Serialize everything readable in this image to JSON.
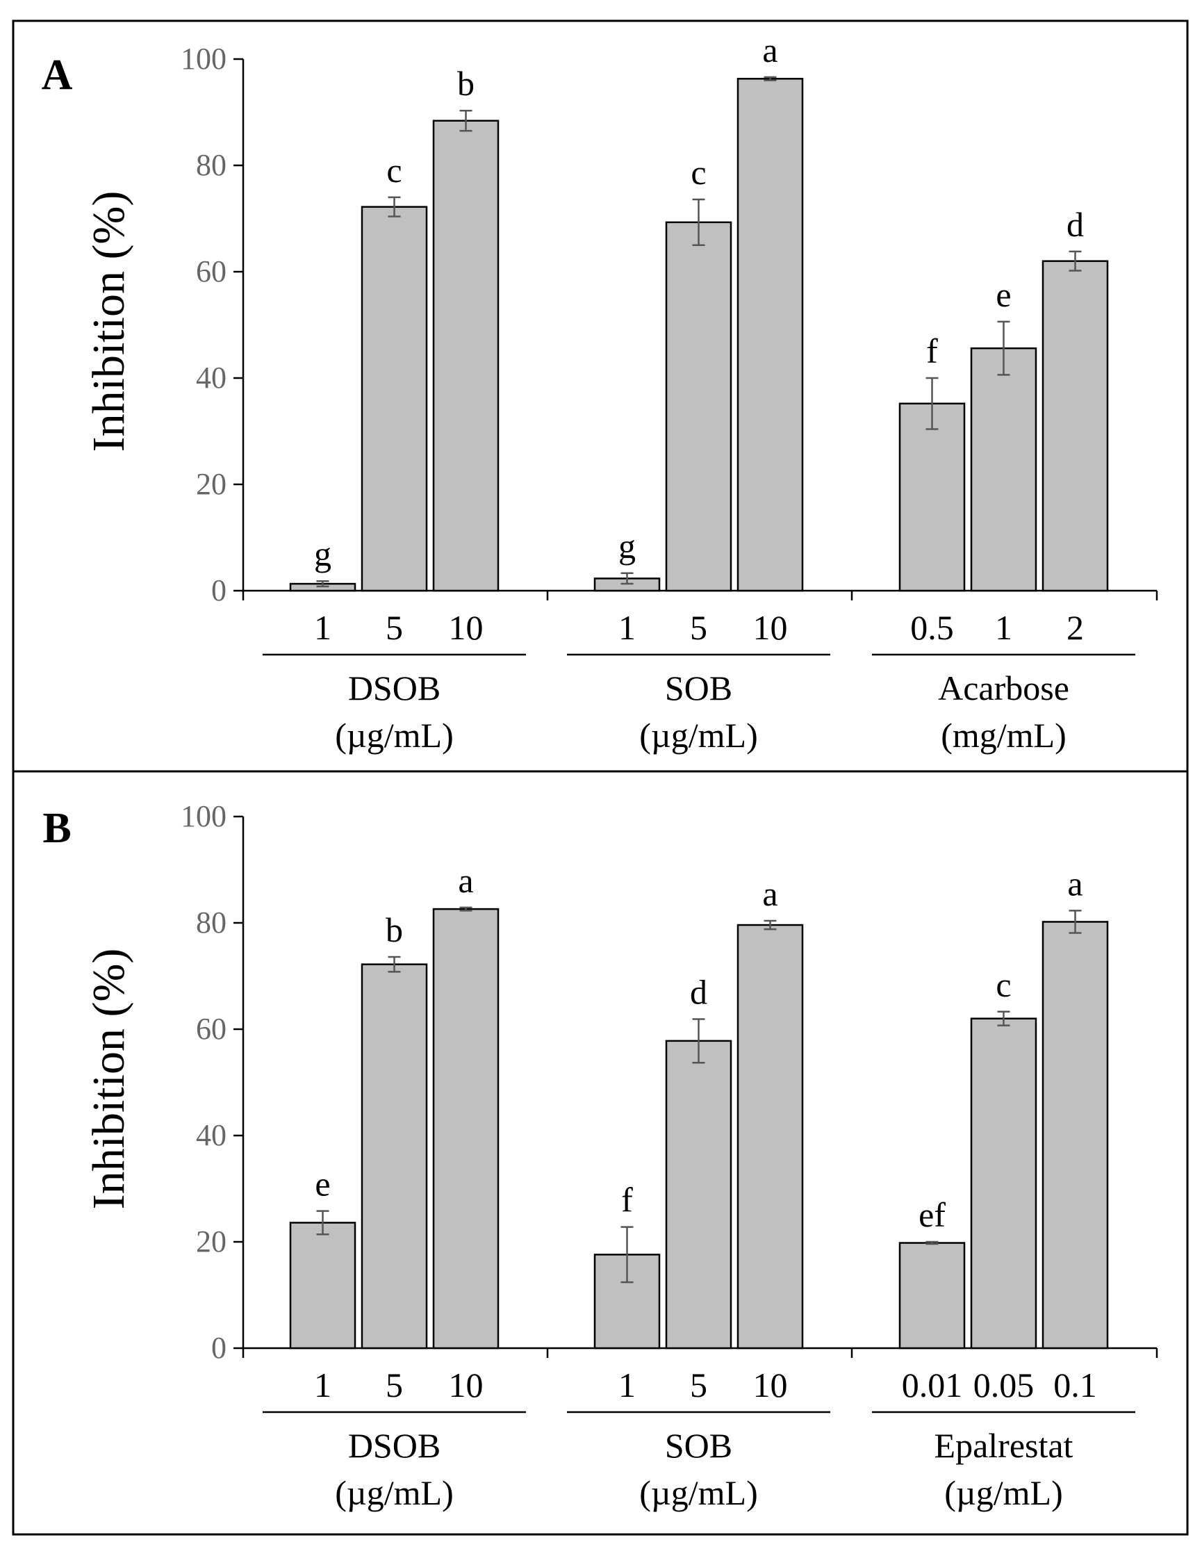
{
  "chart_data": [
    {
      "type": "bar",
      "panel_label": "A",
      "ylabel": "Inhibition (%)",
      "ylim": [
        0,
        100
      ],
      "yticks": [
        0,
        20,
        40,
        60,
        80,
        100
      ],
      "grid": false,
      "bar_color": "#c0c0c0",
      "groups": [
        {
          "name": "DSOB",
          "unit": "(µg/mL)",
          "categories": [
            "1",
            "5",
            "10"
          ],
          "values": [
            1.3,
            72.2,
            88.4
          ],
          "errors": [
            0.5,
            1.8,
            1.9
          ],
          "letters": [
            "g",
            "c",
            "b"
          ]
        },
        {
          "name": "SOB",
          "unit": "(µg/mL)",
          "categories": [
            "1",
            "5",
            "10"
          ],
          "values": [
            2.3,
            69.3,
            96.3
          ],
          "errors": [
            1.0,
            4.3,
            0.3
          ],
          "letters": [
            "g",
            "c",
            "a"
          ]
        },
        {
          "name": "Acarbose",
          "unit": "(mg/mL)",
          "categories": [
            "0.5",
            "1",
            "2"
          ],
          "values": [
            35.2,
            45.6,
            62.0
          ],
          "errors": [
            4.8,
            5.0,
            1.8
          ],
          "letters": [
            "f",
            "e",
            "d"
          ]
        }
      ]
    },
    {
      "type": "bar",
      "panel_label": "B",
      "ylabel": "Inhibition (%)",
      "ylim": [
        0,
        100
      ],
      "yticks": [
        0,
        20,
        40,
        60,
        80,
        100
      ],
      "grid": false,
      "bar_color": "#c0c0c0",
      "groups": [
        {
          "name": "DSOB",
          "unit": "(µg/mL)",
          "categories": [
            "1",
            "5",
            "10"
          ],
          "values": [
            23.6,
            72.2,
            82.6
          ],
          "errors": [
            2.2,
            1.4,
            0.3
          ],
          "letters": [
            "e",
            "b",
            "a"
          ]
        },
        {
          "name": "SOB",
          "unit": "(µg/mL)",
          "categories": [
            "1",
            "5",
            "10"
          ],
          "values": [
            17.6,
            57.8,
            79.6
          ],
          "errors": [
            5.2,
            4.1,
            0.8
          ],
          "letters": [
            "f",
            "d",
            "a"
          ]
        },
        {
          "name": "Epalrestat",
          "unit": "(µg/mL)",
          "categories": [
            "0.01",
            "0.05",
            "0.1"
          ],
          "values": [
            19.8,
            62.0,
            80.2
          ],
          "errors": [
            0.2,
            1.3,
            2.1
          ],
          "letters": [
            "ef",
            "c",
            "a"
          ]
        }
      ]
    }
  ]
}
